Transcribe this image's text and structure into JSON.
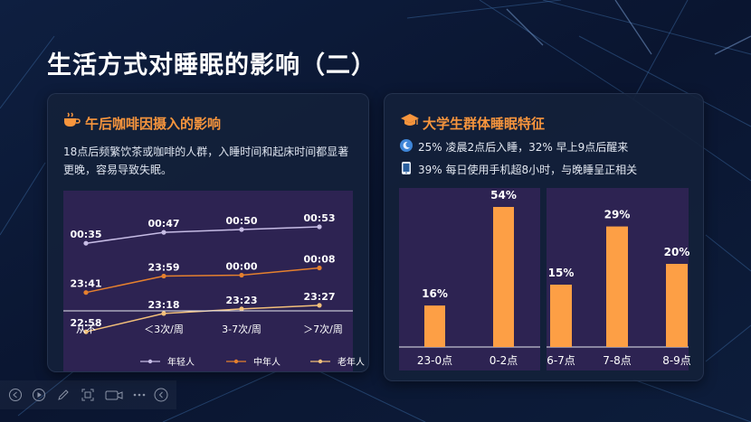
{
  "slide": {
    "title": "生活方式对睡眠的影响（二）"
  },
  "left_card": {
    "title": "午后咖啡因摄入的影响",
    "icon": "coffee-cup-icon",
    "description": "18点后频繁饮茶或咖啡的人群，入睡时间和起床时间都显著更晚，容易导致失眠。"
  },
  "right_card": {
    "title": "大学生群体睡眠特征",
    "icon": "graduation-cap-icon",
    "facts": [
      {
        "icon": "moon-clock-icon",
        "text": "25% 凌晨2点后入睡，32% 早上9点后醒来"
      },
      {
        "icon": "phone-icon",
        "text": "39% 每日使用手机超8小时，与晚睡呈正相关"
      }
    ]
  },
  "bottom_toolbar": {
    "buttons": [
      "prev-slide-icon",
      "play-icon",
      "pen-icon",
      "screen-capture-icon",
      "camera-icon",
      "dots-icon",
      "collapse-icon"
    ]
  },
  "chart_data": [
    {
      "type": "line",
      "title": "",
      "xlabel": "",
      "ylabel": "",
      "categories": [
        "从不",
        "＜3次/周",
        "3-7次/周",
        "＞7次/周"
      ],
      "series": [
        {
          "name": "年轻人",
          "values": [
            "00:35",
            "00:47",
            "00:50",
            "00:53"
          ],
          "minutes": [
            35,
            47,
            50,
            53
          ],
          "color": "#c7bde6"
        },
        {
          "name": "中年人",
          "values": [
            "23:41",
            "23:59",
            "00:00",
            "00:08"
          ],
          "minutes": [
            -19,
            -1,
            0,
            8
          ],
          "color": "#e5802e"
        },
        {
          "name": "老年人",
          "values": [
            "22:58",
            "23:18",
            "23:23",
            "23:27"
          ],
          "minutes": [
            -62,
            -42,
            -37,
            -33
          ],
          "color": "#f3c07a"
        }
      ],
      "legend": "bottom",
      "grid": false
    },
    {
      "type": "bar",
      "title": "",
      "categories": [
        "23-0点",
        "0-2点"
      ],
      "values": [
        16,
        54
      ],
      "labels": [
        "16%",
        "54%"
      ],
      "ylim": [
        0,
        60
      ],
      "color": "#fd9f45"
    },
    {
      "type": "bar",
      "title": "",
      "categories": [
        "6-7点",
        "7-8点",
        "8-9点"
      ],
      "values": [
        15,
        29,
        20
      ],
      "labels": [
        "15%",
        "29%",
        "20%"
      ],
      "ylim": [
        0,
        35
      ],
      "color": "#fd9f45"
    }
  ],
  "colors": {
    "accent": "#f7953d",
    "bar": "#fd9f45",
    "panel": "#2d2352",
    "card": "#14213a"
  }
}
